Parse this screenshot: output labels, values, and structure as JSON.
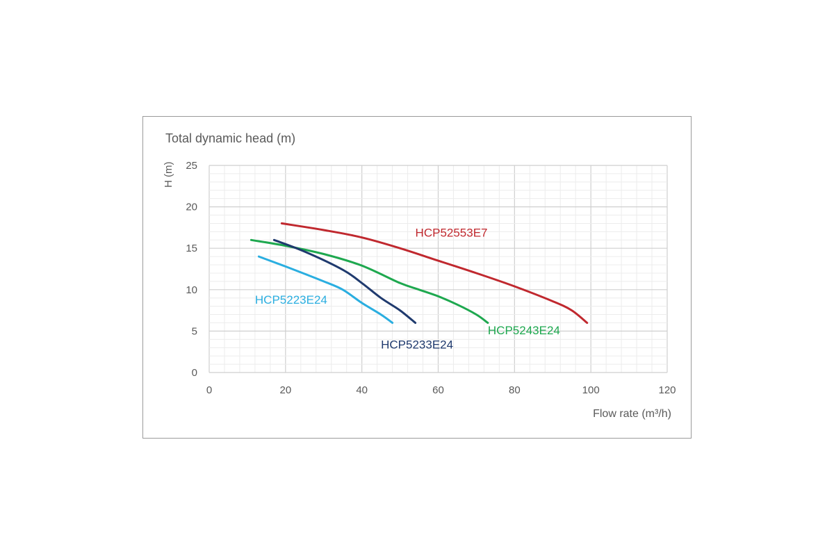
{
  "chart_data": {
    "type": "line",
    "title": "Total dynamic head (m)",
    "xlabel": "Flow rate (m³/h)",
    "ylabel": "H (m)",
    "xlim": [
      0,
      120
    ],
    "ylim": [
      0,
      25
    ],
    "x_ticks": [
      0,
      20,
      40,
      60,
      80,
      100,
      120
    ],
    "y_ticks": [
      0,
      5,
      10,
      15,
      20,
      25
    ],
    "grid": true,
    "legend": "inline labels",
    "series": [
      {
        "name": "HCP52553E7",
        "color": "#c0282e",
        "points": [
          [
            19,
            18.0
          ],
          [
            30,
            17.2
          ],
          [
            40,
            16.3
          ],
          [
            50,
            15.0
          ],
          [
            60,
            13.5
          ],
          [
            70,
            12.0
          ],
          [
            80,
            10.4
          ],
          [
            90,
            8.6
          ],
          [
            95,
            7.5
          ],
          [
            99,
            6.0
          ]
        ]
      },
      {
        "name": "HCP5243E24",
        "color": "#1ea84f",
        "points": [
          [
            11,
            16.0
          ],
          [
            20,
            15.3
          ],
          [
            30,
            14.3
          ],
          [
            40,
            12.9
          ],
          [
            50,
            10.8
          ],
          [
            55,
            10.0
          ],
          [
            60,
            9.2
          ],
          [
            65,
            8.2
          ],
          [
            70,
            7.0
          ],
          [
            73,
            6.0
          ]
        ]
      },
      {
        "name": "HCP5233E24",
        "color": "#1f3a6e",
        "points": [
          [
            17,
            16.0
          ],
          [
            25,
            14.6
          ],
          [
            35,
            12.4
          ],
          [
            40,
            10.8
          ],
          [
            45,
            9.0
          ],
          [
            50,
            7.5
          ],
          [
            54,
            6.0
          ]
        ]
      },
      {
        "name": "HCP5223E24",
        "color": "#2aaee0",
        "points": [
          [
            13,
            14.0
          ],
          [
            20,
            12.8
          ],
          [
            30,
            11.0
          ],
          [
            35,
            10.0
          ],
          [
            40,
            8.4
          ],
          [
            45,
            7.0
          ],
          [
            48,
            6.0
          ]
        ]
      }
    ]
  }
}
